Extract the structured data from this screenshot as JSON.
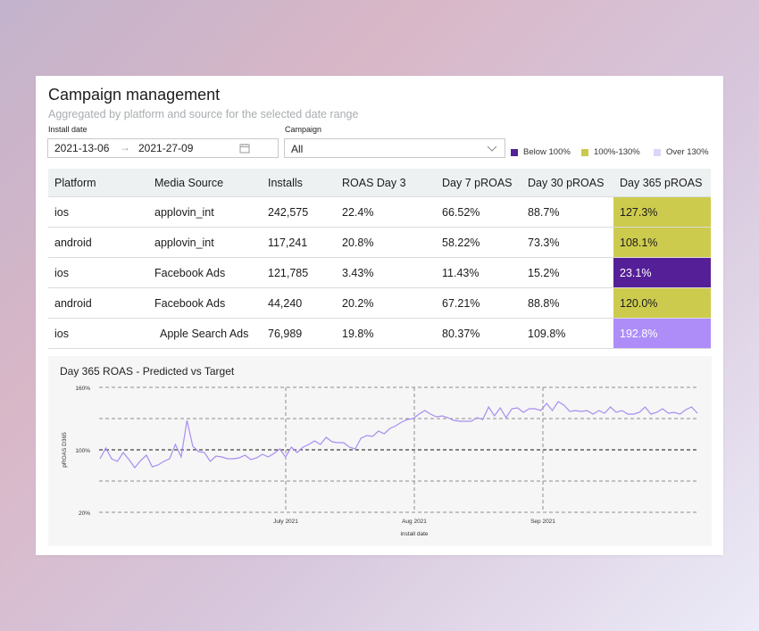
{
  "header": {
    "title": "Campaign management",
    "subtitle": "Aggregated by platform and source for the selected date range"
  },
  "filters": {
    "install_date_label": "Install date",
    "start_date": "2021-13-06",
    "arrow": "→",
    "end_date": "2021-27-09",
    "campaign_label": "Campaign",
    "campaign_value": "All"
  },
  "legend": {
    "below": {
      "label": "Below 100%",
      "color": "#542196"
    },
    "mid": {
      "label": "100%-130%",
      "color": "#c9c94b"
    },
    "over": {
      "label": "Over 130%",
      "color": "#dcd6fb"
    }
  },
  "table": {
    "columns": [
      "Platform",
      "Media Source",
      "Installs",
      "ROAS Day 3",
      "Day 7 pROAS",
      "Day 30 pROAS",
      "Day 365 pROAS"
    ],
    "rows": [
      {
        "platform": "ios",
        "source": "applovin_int",
        "installs": "242,575",
        "roas3": "22.4%",
        "d7": "66.52%",
        "d30": "88.7%",
        "d365": "127.3%",
        "d365_bg": "#cdcb4e",
        "d365_fg": "#1b1b1b"
      },
      {
        "platform": "android",
        "source": "applovin_int",
        "installs": "117,241",
        "roas3": "20.8%",
        "d7": "58.22%",
        "d30": "73.3%",
        "d365": "108.1%",
        "d365_bg": "#cdcb4e",
        "d365_fg": "#1b1b1b"
      },
      {
        "platform": "ios",
        "source": "Facebook Ads",
        "installs": "121,785",
        "roas3": "3.43%",
        "d7": "11.43%",
        "d30": "15.2%",
        "d365": "23.1%",
        "d365_bg": "#552097",
        "d365_fg": "#ffffff"
      },
      {
        "platform": "android",
        "source": "Facebook Ads",
        "installs": "44,240",
        "roas3": "20.2%",
        "d7": "67.21%",
        "d30": "88.8%",
        "d365": "120.0%",
        "d365_bg": "#cdcb4e",
        "d365_fg": "#1b1b1b"
      },
      {
        "platform": "ios",
        "source": "Apple Search Ads",
        "installs": "76,989",
        "roas3": "19.8%",
        "d7": "80.37%",
        "d30": "109.8%",
        "d365": "192.8%",
        "d365_bg": "#ae8df8",
        "d365_fg": "#ffffff"
      }
    ]
  },
  "chart_data": {
    "type": "line",
    "title": "Day 365 ROAS -  Predicted vs Target",
    "xlabel": "install date",
    "ylabel": "pROAS D365",
    "y_ticks": [
      "160%",
      "100%",
      "20%"
    ],
    "x_ticks": [
      "July 2021",
      "Aug 2021",
      "Sep 2021"
    ],
    "ylim": [
      20,
      160
    ],
    "grid": true,
    "line_color": "#a88ef0",
    "series": [
      {
        "values": [
          80,
          92,
          80,
          77,
          87,
          79,
          70,
          78,
          84,
          71,
          73,
          77,
          80,
          96,
          82,
          123,
          94,
          88,
          87,
          77,
          83,
          82,
          80,
          80,
          81,
          84,
          79,
          81,
          85,
          82,
          86,
          91,
          82,
          93,
          87,
          93,
          96,
          100,
          96,
          104,
          99,
          98,
          98,
          93,
          91,
          103,
          106,
          105,
          111,
          108,
          114,
          117,
          121,
          124,
          125,
          130,
          134,
          130,
          127,
          128,
          126,
          123,
          122,
          122,
          122,
          126,
          124,
          138,
          128,
          137,
          126,
          136,
          137,
          132,
          136,
          136,
          134,
          142,
          134,
          144,
          140,
          133,
          134,
          133,
          134,
          130,
          134,
          131,
          138,
          132,
          134,
          130,
          130,
          132,
          138,
          130,
          132,
          136,
          131,
          132,
          130,
          135,
          138,
          131
        ]
      }
    ]
  }
}
